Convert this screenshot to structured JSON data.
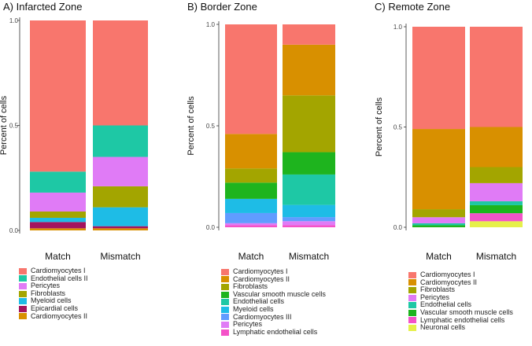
{
  "colors": {
    "Cardiomyocytes I": "#F8766D",
    "Cardiomyocytes II": "#D89000",
    "Cardiomyocytes III": "#619CFF",
    "Fibroblasts": "#A3A500",
    "Vascular smooth muscle cells": "#1EB41E",
    "Endothelial cells": "#1EC8A5",
    "Endothelial cells II": "#1EC8A5",
    "Myeloid cells": "#1EBCE6",
    "Pericytes": "#E07BF6",
    "Epicardial cells": "#A3145E",
    "Lymphatic endothelial cells": "#F452C8",
    "Neuronal cells": "#E6F04A"
  },
  "chart_data": [
    {
      "type": "stacked-bar",
      "title": "A) Infarcted Zone",
      "ylabel": "Percent of cells",
      "xlabel": "",
      "ylim": [
        0,
        1
      ],
      "yticks": [
        "0.0",
        "0.5",
        "1.0"
      ],
      "categories": [
        "Match",
        "Mismatch"
      ],
      "series": [
        {
          "name": "Cardiomyocytes II",
          "values": [
            0.01,
            0.01
          ]
        },
        {
          "name": "Epicardial cells",
          "values": [
            0.03,
            0.01
          ]
        },
        {
          "name": "Myeloid cells",
          "values": [
            0.02,
            0.09
          ]
        },
        {
          "name": "Fibroblasts",
          "values": [
            0.03,
            0.1
          ]
        },
        {
          "name": "Pericytes",
          "values": [
            0.09,
            0.14
          ]
        },
        {
          "name": "Endothelial cells II",
          "values": [
            0.1,
            0.15
          ]
        },
        {
          "name": "Cardiomyocytes I",
          "values": [
            0.72,
            0.5
          ]
        }
      ],
      "legend": [
        "Cardiomyocytes I",
        "Endothelial cells II",
        "Pericytes",
        "Fibroblasts",
        "Myeloid cells",
        "Epicardial cells",
        "Cardiomyocytes II"
      ]
    },
    {
      "type": "stacked-bar",
      "title": "B) Border Zone",
      "ylabel": "Percent of cells",
      "xlabel": "",
      "ylim": [
        0,
        1
      ],
      "yticks": [
        "0.0",
        "0.5",
        "1.0"
      ],
      "categories": [
        "Match",
        "Mismatch"
      ],
      "series": [
        {
          "name": "Lymphatic endothelial cells",
          "values": [
            0.01,
            0.01
          ]
        },
        {
          "name": "Pericytes",
          "values": [
            0.01,
            0.02
          ]
        },
        {
          "name": "Cardiomyocytes III",
          "values": [
            0.05,
            0.02
          ]
        },
        {
          "name": "Myeloid cells",
          "values": [
            0.07,
            0.06
          ]
        },
        {
          "name": "Endothelial cells",
          "values": [
            0.0,
            0.15
          ]
        },
        {
          "name": "Vascular smooth muscle cells",
          "values": [
            0.08,
            0.11
          ]
        },
        {
          "name": "Fibroblasts",
          "values": [
            0.07,
            0.28
          ]
        },
        {
          "name": "Cardiomyocytes II",
          "values": [
            0.17,
            0.25
          ]
        },
        {
          "name": "Cardiomyocytes I",
          "values": [
            0.54,
            0.1
          ]
        }
      ],
      "legend": [
        "Cardiomyocytes I",
        "Cardiomyocytes II",
        "Fibroblasts",
        "Vascular smooth muscle cells",
        "Endothelial cells",
        "Myeloid cells",
        "Cardiomyocytes III",
        "Pericytes",
        "Lymphatic endothelial cells"
      ]
    },
    {
      "type": "stacked-bar",
      "title": "C) Remote Zone",
      "ylabel": "Percent of cells",
      "xlabel": "",
      "ylim": [
        0,
        1
      ],
      "yticks": [
        "0.0",
        "0.5",
        "1.0"
      ],
      "categories": [
        "Match",
        "Mismatch"
      ],
      "series": [
        {
          "name": "Neuronal cells",
          "values": [
            0.0,
            0.03
          ]
        },
        {
          "name": "Lymphatic endothelial cells",
          "values": [
            0.0,
            0.04
          ]
        },
        {
          "name": "Vascular smooth muscle cells",
          "values": [
            0.01,
            0.04
          ]
        },
        {
          "name": "Endothelial cells",
          "values": [
            0.01,
            0.02
          ]
        },
        {
          "name": "Pericytes",
          "values": [
            0.03,
            0.09
          ]
        },
        {
          "name": "Fibroblasts",
          "values": [
            0.04,
            0.08
          ]
        },
        {
          "name": "Cardiomyocytes II",
          "values": [
            0.4,
            0.2
          ]
        },
        {
          "name": "Cardiomyocytes I",
          "values": [
            0.51,
            0.5
          ]
        }
      ],
      "legend": [
        "Cardiomyocytes I",
        "Cardiomyocytes II",
        "Fibroblasts",
        "Pericytes",
        "Endothelial cells",
        "Vascular smooth muscle cells",
        "Lymphatic endothelial cells",
        "Neuronal cells"
      ]
    }
  ]
}
